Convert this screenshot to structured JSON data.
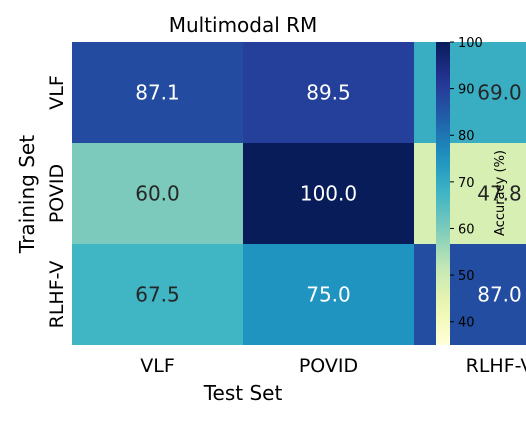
{
  "chart_data": {
    "type": "heatmap",
    "title": "Multimodal RM",
    "xlabel": "Test Set",
    "ylabel": "Training Set",
    "x_categories": [
      "VLF",
      "POVID",
      "RLHF-V"
    ],
    "y_categories": [
      "VLF",
      "POVID",
      "RLHF-V"
    ],
    "values": [
      [
        87.1,
        89.5,
        69.0
      ],
      [
        60.0,
        100.0,
        47.8
      ],
      [
        67.5,
        75.0,
        87.0
      ]
    ],
    "value_labels": [
      [
        "87.1",
        "89.5",
        "69.0"
      ],
      [
        "60.0",
        "100.0",
        "47.8"
      ],
      [
        "67.5",
        "75.0",
        "87.0"
      ]
    ],
    "colorbar": {
      "label": "Accuracy (%)",
      "range": [
        35,
        100
      ],
      "ticks": [
        40,
        50,
        60,
        70,
        80,
        90,
        100
      ],
      "tick_labels": [
        "40",
        "50",
        "60",
        "70",
        "80",
        "90",
        "100"
      ],
      "colormap": "YlGnBu",
      "placement": "right"
    }
  }
}
